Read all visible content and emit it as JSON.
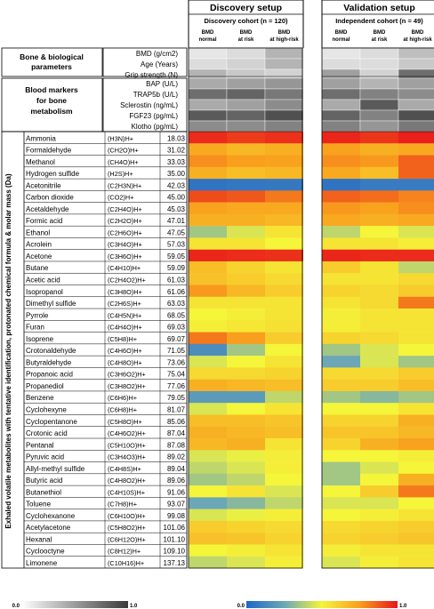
{
  "chart_data": {
    "type": "heatmap",
    "setups": [
      {
        "title": "Discovery setup",
        "cohort": "Discovery cohort (n = 120)",
        "columns": [
          [
            "BMD",
            "normal"
          ],
          [
            "BMD",
            "at risk"
          ],
          [
            "BMD",
            "at high-risk"
          ]
        ]
      },
      {
        "title": "Validation setup",
        "cohort": "Independent cohort (n = 49)",
        "columns": [
          [
            "BMD",
            "normal"
          ],
          [
            "BMD",
            "at risk"
          ],
          [
            "BMD",
            "at high-risk"
          ]
        ]
      }
    ],
    "groups": [
      {
        "label": [
          "Bone & biological",
          "parameters"
        ],
        "rows": [
          "BMD (g/cm2)",
          "Age (Years)",
          "Grip strength (N)"
        ]
      },
      {
        "label": [
          "Blood markers",
          "for bone",
          "metabolism"
        ],
        "rows": [
          "BAP (U/L)",
          "TRAP5b (U/L)",
          "Sclerostin (ng/mL)",
          "FGF23 (pg/mL)",
          "Klotho (pg/mL)"
        ]
      }
    ],
    "grey_values": [
      [
        0.1,
        0.15,
        0.35,
        0.1,
        0.15,
        0.3
      ],
      [
        0.15,
        0.2,
        0.35,
        0.15,
        0.15,
        0.25
      ],
      [
        0.35,
        0.25,
        0.2,
        0.45,
        0.2,
        0.7
      ],
      [
        0.4,
        0.45,
        0.5,
        0.45,
        0.35,
        0.45
      ],
      [
        0.7,
        0.75,
        0.65,
        0.7,
        0.6,
        0.55
      ],
      [
        0.4,
        0.45,
        0.55,
        0.4,
        0.8,
        0.4
      ],
      [
        0.8,
        0.75,
        0.85,
        0.75,
        0.6,
        0.85
      ],
      [
        0.55,
        0.55,
        0.6,
        0.6,
        0.5,
        0.65
      ]
    ],
    "y_axis_label": "Exhaled volatile metabolites with tentative identification, protonated chemical formula & molar mass (Da)",
    "metabolites": [
      {
        "name": "Ammonia",
        "formula": "(H3N)H+",
        "mass": "18.03",
        "values": [
          0.96,
          0.93,
          0.95,
          0.97,
          0.94,
          0.98
        ]
      },
      {
        "name": "Formaldehyde",
        "formula": "(CH2O)H+",
        "mass": "31.02",
        "values": [
          0.72,
          0.68,
          0.7,
          0.74,
          0.7,
          0.72
        ]
      },
      {
        "name": "Methanol",
        "formula": "(CH4O)H+",
        "mass": "33.03",
        "values": [
          0.78,
          0.75,
          0.74,
          0.78,
          0.76,
          0.86
        ]
      },
      {
        "name": "Hydrogen sulfide",
        "formula": "(H2S)H+",
        "mass": "35.00",
        "values": [
          0.7,
          0.66,
          0.68,
          0.72,
          0.66,
          0.86
        ]
      },
      {
        "name": "Acetonitrile",
        "formula": "(C2H3N)H+",
        "mass": "42.03",
        "values": [
          0.05,
          0.06,
          0.07,
          0.05,
          0.08,
          0.08
        ]
      },
      {
        "name": "Carbon dioxide",
        "formula": "(CO2)H+",
        "mass": "45.00",
        "values": [
          0.9,
          0.88,
          0.82,
          0.86,
          0.84,
          0.8
        ]
      },
      {
        "name": "Acetaldehyde",
        "formula": "(C2H4O)H+",
        "mass": "45.03",
        "values": [
          0.74,
          0.72,
          0.72,
          0.76,
          0.74,
          0.78
        ]
      },
      {
        "name": "Formic acid",
        "formula": "(C2H2O)H+",
        "mass": "47.01",
        "values": [
          0.7,
          0.7,
          0.68,
          0.72,
          0.7,
          0.72
        ]
      },
      {
        "name": "Ethanol",
        "formula": "(C2H6O)H+",
        "mass": "47.05",
        "values": [
          0.35,
          0.45,
          0.55,
          0.4,
          0.5,
          0.45
        ]
      },
      {
        "name": "Acrolein",
        "formula": "(C3H4O)H+",
        "mass": "57.03",
        "values": [
          0.55,
          0.55,
          0.5,
          0.55,
          0.55,
          0.52
        ]
      },
      {
        "name": "Acetone",
        "formula": "(C3H6O)H+",
        "mass": "59.05",
        "values": [
          0.97,
          0.96,
          0.95,
          0.97,
          0.96,
          0.96
        ]
      },
      {
        "name": "Butane",
        "formula": "(C4H10)H+",
        "mass": "59.09",
        "values": [
          0.66,
          0.6,
          0.55,
          0.62,
          0.55,
          0.4
        ]
      },
      {
        "name": "Acetic acid",
        "formula": "(C2H4O2)H+",
        "mass": "61.03",
        "values": [
          0.65,
          0.62,
          0.58,
          0.55,
          0.55,
          0.58
        ]
      },
      {
        "name": "Isopropanol",
        "formula": "(C3H8O)H+",
        "mass": "61.06",
        "values": [
          0.76,
          0.68,
          0.62,
          0.6,
          0.58,
          0.62
        ]
      },
      {
        "name": "Dimethyl sulfide",
        "formula": "(C2H6S)H+",
        "mass": "63.03",
        "values": [
          0.55,
          0.55,
          0.55,
          0.55,
          0.58,
          0.82
        ]
      },
      {
        "name": "Pyrrole",
        "formula": "(C4H5N)H+",
        "mass": "68.05",
        "values": [
          0.5,
          0.52,
          0.55,
          0.52,
          0.55,
          0.55
        ]
      },
      {
        "name": "Furan",
        "formula": "(C4H4O)H+",
        "mass": "69.03",
        "values": [
          0.52,
          0.54,
          0.56,
          0.52,
          0.55,
          0.55
        ]
      },
      {
        "name": "Isoprene",
        "formula": "(C5H8)H+",
        "mass": "69.07",
        "values": [
          0.82,
          0.75,
          0.62,
          0.6,
          0.58,
          0.55
        ]
      },
      {
        "name": "Crotonaldehyde",
        "formula": "(C4H6O)H+",
        "mass": "71.05",
        "values": [
          0.15,
          0.35,
          0.5,
          0.35,
          0.45,
          0.5
        ]
      },
      {
        "name": "Butyraldehyde",
        "formula": "(C4H8O)H+",
        "mass": "73.06",
        "values": [
          0.45,
          0.5,
          0.55,
          0.25,
          0.45,
          0.35
        ]
      },
      {
        "name": "Propanoic acid",
        "formula": "(C3H6O2)H+",
        "mass": "75.04",
        "values": [
          0.58,
          0.58,
          0.6,
          0.58,
          0.58,
          0.62
        ]
      },
      {
        "name": "Propanediol",
        "formula": "(C3H8O2)H+",
        "mass": "77.06",
        "values": [
          0.7,
          0.68,
          0.66,
          0.62,
          0.62,
          0.66
        ]
      },
      {
        "name": "Benzene",
        "formula": "(C6H6)H+",
        "mass": "79.05",
        "values": [
          0.2,
          0.2,
          0.4,
          0.35,
          0.3,
          0.35
        ]
      },
      {
        "name": "Cyclohexyne",
        "formula": "(C6H8)H+",
        "mass": "81.07",
        "values": [
          0.45,
          0.5,
          0.55,
          0.5,
          0.5,
          0.55
        ]
      },
      {
        "name": "Cyclopentanone",
        "formula": "(C5H8O)H+",
        "mass": "85.06",
        "values": [
          0.66,
          0.66,
          0.64,
          0.6,
          0.6,
          0.7
        ]
      },
      {
        "name": "Crotonic acid",
        "formula": "(C4H6O2)H+",
        "mass": "87.04",
        "values": [
          0.7,
          0.68,
          0.66,
          0.64,
          0.64,
          0.68
        ]
      },
      {
        "name": "Pentanal",
        "formula": "(C5H10O)H+",
        "mass": "87.08",
        "values": [
          0.68,
          0.7,
          0.55,
          0.6,
          0.7,
          0.74
        ]
      },
      {
        "name": "Pyruvic acid",
        "formula": "(C3H4O3)H+",
        "mass": "89.02",
        "values": [
          0.45,
          0.48,
          0.52,
          0.5,
          0.5,
          0.52
        ]
      },
      {
        "name": "Allyl-methyl sulfide",
        "formula": "(C4H8S)H+",
        "mass": "89.04",
        "values": [
          0.4,
          0.45,
          0.52,
          0.35,
          0.45,
          0.5
        ]
      },
      {
        "name": "Butyric acid",
        "formula": "(C4H8O2)H+",
        "mass": "89.06",
        "values": [
          0.35,
          0.4,
          0.5,
          0.35,
          0.5,
          0.7
        ]
      },
      {
        "name": "Butanethiol",
        "formula": "(C4H10S)H+",
        "mass": "91.06",
        "values": [
          0.5,
          0.55,
          0.45,
          0.5,
          0.62,
          0.82
        ]
      },
      {
        "name": "Toluene",
        "formula": "(C7H8)H+",
        "mass": "93.07",
        "values": [
          0.25,
          0.3,
          0.4,
          0.45,
          0.45,
          0.5
        ]
      },
      {
        "name": "Cyclohexanone",
        "formula": "(C6H10O)H+",
        "mass": "99.08",
        "values": [
          0.45,
          0.48,
          0.52,
          0.5,
          0.52,
          0.55
        ]
      },
      {
        "name": "Acetylacetone",
        "formula": "(C5H8O2)H+",
        "mass": "101.06",
        "values": [
          0.62,
          0.6,
          0.58,
          0.58,
          0.6,
          0.62
        ]
      },
      {
        "name": "Hexanal",
        "formula": "(C6H12O)H+",
        "mass": "101.10",
        "values": [
          0.65,
          0.64,
          0.6,
          0.6,
          0.62,
          0.64
        ]
      },
      {
        "name": "Cyclooctyne",
        "formula": "(C8H12)H+",
        "mass": "109.10",
        "values": [
          0.5,
          0.52,
          0.55,
          0.52,
          0.55,
          0.55
        ]
      },
      {
        "name": "Limonene",
        "formula": "(C10H16)H+",
        "mass": "137.13",
        "values": [
          0.4,
          0.45,
          0.52,
          0.45,
          0.52,
          0.55
        ]
      }
    ],
    "legends": [
      {
        "type": "grey",
        "min_label": "0.0",
        "max_label": "1.0"
      },
      {
        "type": "color",
        "min_label": "0.0",
        "max_label": "1.0"
      }
    ]
  }
}
